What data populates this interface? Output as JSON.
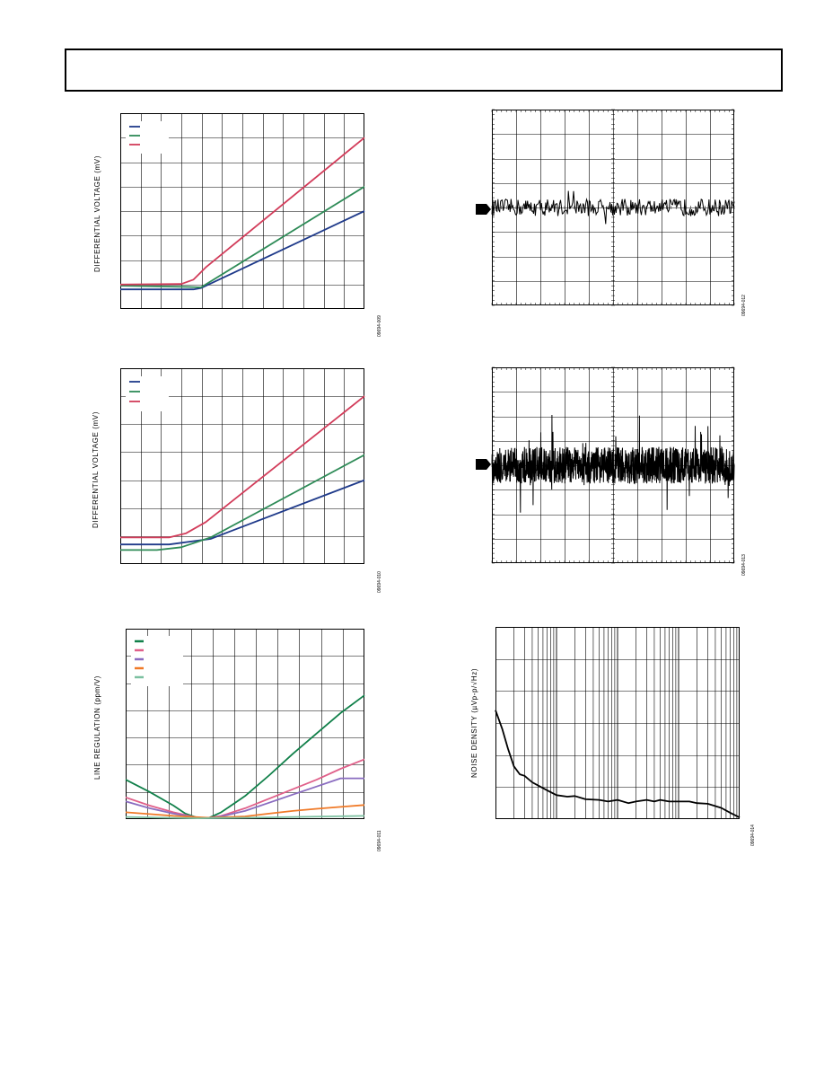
{
  "chart_data": [
    {
      "id": "chart1",
      "type": "line",
      "ylabel": "DIFFERENTIAL VOLTAGE (mV)",
      "code": "09694-009",
      "xlim": [
        0,
        100
      ],
      "ylim": [
        0,
        8
      ],
      "grid": true,
      "legend": "top-left",
      "series": [
        {
          "color": "#1f3a8a",
          "x": [
            0,
            30,
            33,
            100
          ],
          "y": [
            0.8,
            0.8,
            0.85,
            4.0
          ]
        },
        {
          "color": "#2e8b57",
          "x": [
            0,
            28,
            33,
            100
          ],
          "y": [
            0.95,
            0.9,
            0.88,
            5.0
          ]
        },
        {
          "color": "#d23c5a",
          "x": [
            0,
            25,
            30,
            35,
            100
          ],
          "y": [
            1.0,
            1.02,
            1.2,
            1.7,
            7.0
          ]
        }
      ]
    },
    {
      "id": "chart2",
      "type": "line",
      "ylabel": "DIFFERENTIAL VOLTAGE (mV)",
      "code": "09694-010",
      "xlim": [
        0,
        100
      ],
      "ylim": [
        0,
        7
      ],
      "grid": true,
      "legend": "top-left",
      "series": [
        {
          "color": "#1f3a8a",
          "x": [
            0,
            20,
            37,
            100
          ],
          "y": [
            0.7,
            0.7,
            0.9,
            3.0
          ]
        },
        {
          "color": "#2e8b57",
          "x": [
            0,
            15,
            25,
            37,
            100
          ],
          "y": [
            0.5,
            0.5,
            0.6,
            0.95,
            3.9
          ]
        },
        {
          "color": "#d23c5a",
          "x": [
            0,
            20,
            27,
            35,
            100
          ],
          "y": [
            0.95,
            0.95,
            1.1,
            1.5,
            6.0
          ]
        }
      ]
    },
    {
      "id": "chart3",
      "type": "line",
      "ylabel": "LINE REGULATION (ppm/V)",
      "code": "09694-011",
      "xlim": [
        0,
        100
      ],
      "ylim": [
        0,
        7
      ],
      "grid": true,
      "legend": "top-left",
      "series": [
        {
          "color": "#11804a",
          "x": [
            0,
            10,
            20,
            25,
            30,
            35,
            40,
            50,
            60,
            70,
            80,
            90,
            100
          ],
          "y": [
            1.45,
            1.0,
            0.5,
            0.2,
            0.05,
            0.05,
            0.25,
            0.85,
            1.6,
            2.4,
            3.15,
            3.9,
            4.55
          ]
        },
        {
          "color": "#e0608a",
          "x": [
            0,
            10,
            20,
            30,
            35,
            40,
            50,
            60,
            70,
            80,
            90,
            100
          ],
          "y": [
            0.8,
            0.5,
            0.25,
            0.05,
            0.05,
            0.12,
            0.4,
            0.75,
            1.1,
            1.45,
            1.85,
            2.2
          ]
        },
        {
          "color": "#8a6cc0",
          "x": [
            0,
            10,
            20,
            30,
            35,
            40,
            50,
            60,
            70,
            80,
            90,
            100
          ],
          "y": [
            0.65,
            0.4,
            0.2,
            0.05,
            0.05,
            0.1,
            0.3,
            0.6,
            0.9,
            1.2,
            1.5,
            1.5
          ]
        },
        {
          "color": "#f07a28",
          "x": [
            0,
            20,
            35,
            50,
            60,
            70,
            80,
            90,
            100
          ],
          "y": [
            0.25,
            0.12,
            0.05,
            0.1,
            0.2,
            0.3,
            0.38,
            0.45,
            0.52
          ]
        },
        {
          "color": "#7cc0a0",
          "x": [
            0,
            30,
            50,
            100
          ],
          "y": [
            0.08,
            0.03,
            0.05,
            0.12
          ]
        }
      ]
    },
    {
      "id": "chart4",
      "type": "line",
      "code": "09694-012",
      "xlim": [
        0,
        10
      ],
      "ylim": [
        0,
        8
      ],
      "grid": true,
      "baseline": 4.0,
      "noise_amplitude": 0.35,
      "spike_probability": 0.03,
      "points": 280,
      "series": [
        {
          "color": "#000000"
        }
      ]
    },
    {
      "id": "chart5",
      "type": "line",
      "code": "09694-013",
      "xlim": [
        0,
        10
      ],
      "ylim": [
        0,
        8
      ],
      "grid": true,
      "baseline": 4.0,
      "noise_amplitude": 0.75,
      "spike_probability": 0.05,
      "points": 1200,
      "series": [
        {
          "color": "#000000"
        }
      ]
    },
    {
      "id": "chart6",
      "type": "line",
      "ylabel": "NOISE DENSITY (µVp-p/√Hz)",
      "code": "09694-014",
      "xscale": "log",
      "xlim": [
        1,
        10000
      ],
      "ylim": [
        0,
        6
      ],
      "grid": true,
      "series": [
        {
          "color": "#000000",
          "x": [
            1,
            1.3,
            1.6,
            2,
            2.5,
            3,
            4,
            5,
            7,
            10,
            15,
            20,
            30,
            50,
            70,
            100,
            150,
            200,
            300,
            400,
            500,
            700,
            1000,
            1500,
            2000,
            3000,
            5000,
            7000,
            10000
          ],
          "y": [
            3.4,
            2.8,
            2.2,
            1.65,
            1.4,
            1.35,
            1.15,
            1.05,
            0.9,
            0.75,
            0.7,
            0.72,
            0.62,
            0.6,
            0.55,
            0.6,
            0.5,
            0.55,
            0.6,
            0.55,
            0.6,
            0.55,
            0.55,
            0.55,
            0.5,
            0.48,
            0.35,
            0.2,
            0.05
          ]
        }
      ]
    }
  ]
}
